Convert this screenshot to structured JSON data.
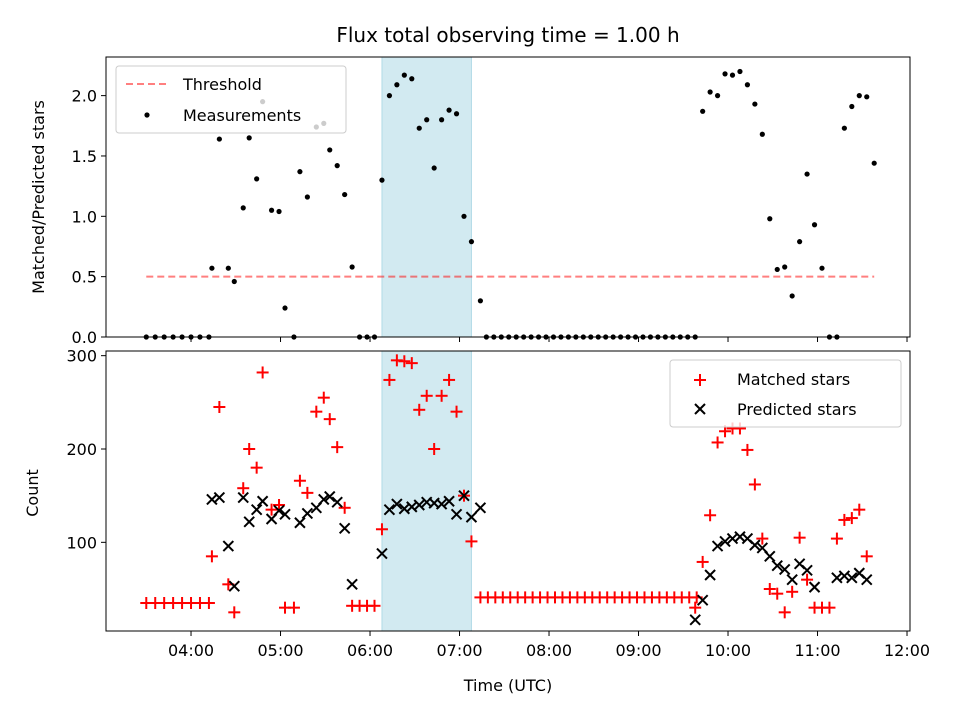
{
  "chart_data": [
    {
      "type": "scatter",
      "title": "Flux total observing time = 1.00 h",
      "xlabel": "",
      "ylabel": "Matched/Predicted stars",
      "ylim": [
        0,
        2.32
      ],
      "ytick_labels": [
        "0.0",
        "0.5",
        "1.0",
        "1.5",
        "2.0"
      ],
      "yticks": [
        0,
        0.5,
        1.0,
        1.5,
        2.0
      ],
      "grid": false,
      "legend_position": "top-left",
      "shaded_span": {
        "from": "06:08",
        "to": "07:08",
        "color": "#add8e6"
      },
      "threshold": {
        "name": "Threshold",
        "value": 0.5,
        "from": "03:30",
        "to": "11:38",
        "color": "#ff0000",
        "style": "dashed"
      },
      "series": [
        {
          "name": "Measurements",
          "color": "#000000",
          "marker": "dot",
          "points": [
            [
              "03:30",
              0
            ],
            [
              "03:36",
              0
            ],
            [
              "03:42",
              0
            ],
            [
              "03:48",
              0
            ],
            [
              "03:54",
              0
            ],
            [
              "04:00",
              0
            ],
            [
              "04:06",
              0
            ],
            [
              "04:12",
              0
            ],
            [
              "04:14",
              0.57
            ],
            [
              "04:19",
              1.64
            ],
            [
              "04:25",
              0.57
            ],
            [
              "04:29",
              0.46
            ],
            [
              "04:35",
              1.07
            ],
            [
              "04:39",
              1.65
            ],
            [
              "04:44",
              1.31
            ],
            [
              "04:48",
              1.95
            ],
            [
              "04:54",
              1.05
            ],
            [
              "04:59",
              1.04
            ],
            [
              "05:03",
              0.24
            ],
            [
              "05:09",
              0
            ],
            [
              "05:13",
              1.37
            ],
            [
              "05:18",
              1.16
            ],
            [
              "05:24",
              1.74
            ],
            [
              "05:29",
              1.77
            ],
            [
              "05:33",
              1.55
            ],
            [
              "05:38",
              1.42
            ],
            [
              "05:43",
              1.18
            ],
            [
              "05:48",
              0.58
            ],
            [
              "05:53",
              0
            ],
            [
              "05:58",
              0
            ],
            [
              "06:03",
              0
            ],
            [
              "06:08",
              1.3
            ],
            [
              "06:13",
              2.0
            ],
            [
              "06:18",
              2.09
            ],
            [
              "06:23",
              2.17
            ],
            [
              "06:28",
              2.14
            ],
            [
              "06:33",
              1.73
            ],
            [
              "06:38",
              1.8
            ],
            [
              "06:43",
              1.4
            ],
            [
              "06:48",
              1.8
            ],
            [
              "06:53",
              1.88
            ],
            [
              "06:58",
              1.85
            ],
            [
              "07:03",
              1.0
            ],
            [
              "07:08",
              0.79
            ],
            [
              "07:14",
              0.3
            ],
            [
              "07:18",
              0
            ],
            [
              "07:23",
              0
            ],
            [
              "07:28",
              0
            ],
            [
              "07:33",
              0
            ],
            [
              "07:38",
              0
            ],
            [
              "07:43",
              0
            ],
            [
              "07:48",
              0
            ],
            [
              "07:53",
              0
            ],
            [
              "07:58",
              0
            ],
            [
              "08:03",
              0
            ],
            [
              "08:08",
              0
            ],
            [
              "08:13",
              0
            ],
            [
              "08:18",
              0
            ],
            [
              "08:23",
              0
            ],
            [
              "08:28",
              0
            ],
            [
              "08:33",
              0
            ],
            [
              "08:38",
              0
            ],
            [
              "08:43",
              0
            ],
            [
              "08:48",
              0
            ],
            [
              "08:53",
              0
            ],
            [
              "08:58",
              0
            ],
            [
              "09:03",
              0
            ],
            [
              "09:08",
              0
            ],
            [
              "09:13",
              0
            ],
            [
              "09:18",
              0
            ],
            [
              "09:23",
              0
            ],
            [
              "09:28",
              0
            ],
            [
              "09:33",
              0
            ],
            [
              "09:38",
              0
            ],
            [
              "09:43",
              1.87
            ],
            [
              "09:48",
              2.03
            ],
            [
              "09:53",
              2.0
            ],
            [
              "09:58",
              2.18
            ],
            [
              "10:03",
              2.17
            ],
            [
              "10:08",
              2.2
            ],
            [
              "10:13",
              2.09
            ],
            [
              "10:18",
              1.93
            ],
            [
              "10:23",
              1.68
            ],
            [
              "10:28",
              0.98
            ],
            [
              "10:33",
              0.56
            ],
            [
              "10:38",
              0.58
            ],
            [
              "10:43",
              0.34
            ],
            [
              "10:48",
              0.79
            ],
            [
              "10:53",
              1.35
            ],
            [
              "10:58",
              0.93
            ],
            [
              "11:03",
              0.57
            ],
            [
              "11:08",
              0
            ],
            [
              "11:13",
              0
            ],
            [
              "11:18",
              1.73
            ],
            [
              "11:23",
              1.91
            ],
            [
              "11:28",
              2.0
            ],
            [
              "11:33",
              1.99
            ],
            [
              "11:38",
              1.44
            ]
          ]
        }
      ]
    },
    {
      "type": "scatter",
      "title": "",
      "xlabel": "Time (UTC)",
      "ylabel": "Count",
      "ylim": [
        5,
        305
      ],
      "ytick_labels": [
        "100",
        "200",
        "300"
      ],
      "yticks": [
        100,
        200,
        300
      ],
      "xlim": [
        "03:03",
        "12:02"
      ],
      "xtick_labels": [
        "04:00",
        "05:00",
        "06:00",
        "07:00",
        "08:00",
        "09:00",
        "10:00",
        "11:00",
        "12:00"
      ],
      "grid": false,
      "legend_position": "top-right",
      "shaded_span": {
        "from": "06:08",
        "to": "07:08",
        "color": "#add8e6"
      },
      "series": [
        {
          "name": "Matched stars",
          "color": "#ff0000",
          "marker": "plus",
          "points": [
            [
              "03:30",
              35
            ],
            [
              "03:36",
              35
            ],
            [
              "03:42",
              35
            ],
            [
              "03:48",
              35
            ],
            [
              "03:54",
              35
            ],
            [
              "04:00",
              35
            ],
            [
              "04:06",
              35
            ],
            [
              "04:12",
              35
            ],
            [
              "04:14",
              85
            ],
            [
              "04:19",
              245
            ],
            [
              "04:25",
              55
            ],
            [
              "04:29",
              25
            ],
            [
              "04:35",
              158
            ],
            [
              "04:39",
              200
            ],
            [
              "04:44",
              180
            ],
            [
              "04:48",
              282
            ],
            [
              "04:54",
              135
            ],
            [
              "04:59",
              140
            ],
            [
              "05:03",
              30
            ],
            [
              "05:09",
              30
            ],
            [
              "05:13",
              166
            ],
            [
              "05:18",
              153
            ],
            [
              "05:24",
              240
            ],
            [
              "05:29",
              255
            ],
            [
              "05:33",
              232
            ],
            [
              "05:38",
              202
            ],
            [
              "05:43",
              137
            ],
            [
              "05:48",
              32
            ],
            [
              "05:53",
              32
            ],
            [
              "05:58",
              32
            ],
            [
              "06:03",
              32
            ],
            [
              "06:08",
              114
            ],
            [
              "06:13",
              274
            ],
            [
              "06:18",
              295
            ],
            [
              "06:23",
              294
            ],
            [
              "06:28",
              292
            ],
            [
              "06:33",
              242
            ],
            [
              "06:38",
              257
            ],
            [
              "06:43",
              200
            ],
            [
              "06:48",
              257
            ],
            [
              "06:53",
              274
            ],
            [
              "06:58",
              240
            ],
            [
              "07:03",
              150
            ],
            [
              "07:08",
              101
            ],
            [
              "07:14",
              41
            ],
            [
              "07:19",
              41
            ],
            [
              "07:24",
              41
            ],
            [
              "07:29",
              41
            ],
            [
              "07:34",
              41
            ],
            [
              "07:39",
              41
            ],
            [
              "07:44",
              41
            ],
            [
              "07:49",
              41
            ],
            [
              "07:54",
              41
            ],
            [
              "07:59",
              41
            ],
            [
              "08:04",
              41
            ],
            [
              "08:09",
              41
            ],
            [
              "08:14",
              41
            ],
            [
              "08:19",
              41
            ],
            [
              "08:24",
              41
            ],
            [
              "08:29",
              41
            ],
            [
              "08:34",
              41
            ],
            [
              "08:39",
              41
            ],
            [
              "08:44",
              41
            ],
            [
              "08:49",
              41
            ],
            [
              "08:54",
              41
            ],
            [
              "08:59",
              41
            ],
            [
              "09:04",
              41
            ],
            [
              "09:09",
              41
            ],
            [
              "09:14",
              41
            ],
            [
              "09:19",
              41
            ],
            [
              "09:24",
              41
            ],
            [
              "09:29",
              41
            ],
            [
              "09:34",
              41
            ],
            [
              "09:39",
              41
            ],
            [
              "09:38",
              30
            ],
            [
              "09:43",
              79
            ],
            [
              "09:48",
              129
            ],
            [
              "09:53",
              207
            ],
            [
              "09:58",
              219
            ],
            [
              "10:03",
              222
            ],
            [
              "10:08",
              222
            ],
            [
              "10:13",
              199
            ],
            [
              "10:18",
              162
            ],
            [
              "10:23",
              104
            ],
            [
              "10:28",
              50
            ],
            [
              "10:33",
              45
            ],
            [
              "10:38",
              25
            ],
            [
              "10:43",
              47
            ],
            [
              "10:48",
              105
            ],
            [
              "10:53",
              60
            ],
            [
              "10:58",
              30
            ],
            [
              "11:03",
              30
            ],
            [
              "11:08",
              30
            ],
            [
              "11:13",
              104
            ],
            [
              "11:18",
              124
            ],
            [
              "11:23",
              126
            ],
            [
              "11:28",
              135
            ],
            [
              "11:33",
              85
            ]
          ]
        },
        {
          "name": "Predicted stars",
          "color": "#000000",
          "marker": "x",
          "points": [
            [
              "04:14",
              146
            ],
            [
              "04:19",
              148
            ],
            [
              "04:25",
              96
            ],
            [
              "04:29",
              53
            ],
            [
              "04:35",
              148
            ],
            [
              "04:39",
              122
            ],
            [
              "04:44",
              135
            ],
            [
              "04:48",
              144
            ],
            [
              "04:54",
              125
            ],
            [
              "04:59",
              134
            ],
            [
              "05:03",
              130
            ],
            [
              "05:13",
              121
            ],
            [
              "05:18",
              131
            ],
            [
              "05:24",
              137
            ],
            [
              "05:29",
              146
            ],
            [
              "05:33",
              149
            ],
            [
              "05:38",
              143
            ],
            [
              "05:43",
              115
            ],
            [
              "05:48",
              55
            ],
            [
              "06:08",
              88
            ],
            [
              "06:13",
              135
            ],
            [
              "06:18",
              141
            ],
            [
              "06:23",
              136
            ],
            [
              "06:28",
              138
            ],
            [
              "06:33",
              140
            ],
            [
              "06:38",
              143
            ],
            [
              "06:43",
              142
            ],
            [
              "06:48",
              141
            ],
            [
              "06:53",
              144
            ],
            [
              "06:58",
              130
            ],
            [
              "07:03",
              150
            ],
            [
              "07:08",
              127
            ],
            [
              "07:14",
              137
            ],
            [
              "09:38",
              17
            ],
            [
              "09:43",
              38
            ],
            [
              "09:48",
              65
            ],
            [
              "09:53",
              96
            ],
            [
              "09:58",
              101
            ],
            [
              "10:03",
              104
            ],
            [
              "10:08",
              106
            ],
            [
              "10:13",
              104
            ],
            [
              "10:18",
              97
            ],
            [
              "10:23",
              94
            ],
            [
              "10:28",
              85
            ],
            [
              "10:33",
              75
            ],
            [
              "10:38",
              71
            ],
            [
              "10:43",
              60
            ],
            [
              "10:48",
              77
            ],
            [
              "10:53",
              70
            ],
            [
              "10:58",
              52
            ],
            [
              "11:13",
              62
            ],
            [
              "11:18",
              64
            ],
            [
              "11:23",
              62
            ],
            [
              "11:28",
              67
            ],
            [
              "11:33",
              60
            ]
          ]
        }
      ]
    }
  ]
}
